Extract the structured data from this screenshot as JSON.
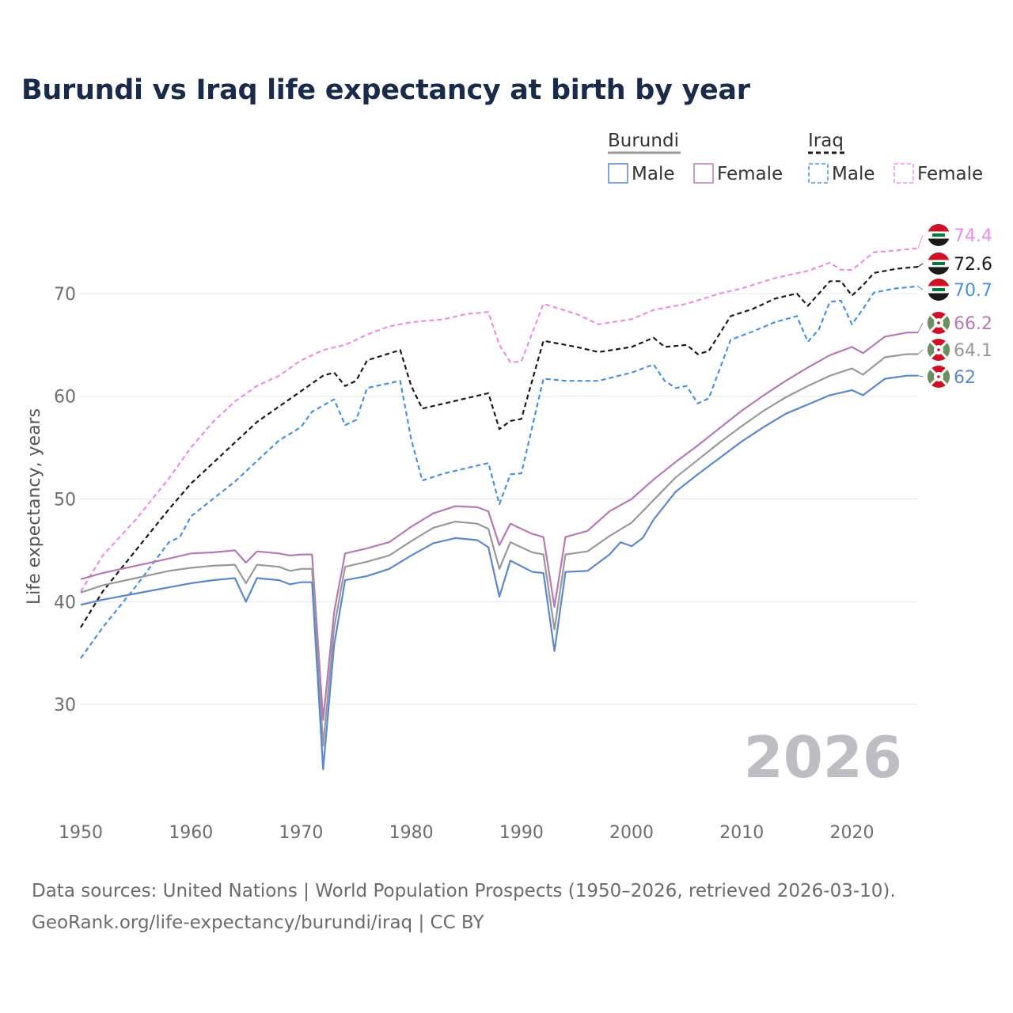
{
  "title": "Burundi vs Iraq life expectancy at birth by year",
  "source": {
    "line1": "Data sources: United Nations | World Population Prospects (1950–2026, retrieved 2026-03-10).",
    "line2": "GeoRank.org/life-expectancy/burundi/iraq | CC BY"
  },
  "year_watermark": "2026",
  "legend": {
    "groups": [
      {
        "country": "Burundi",
        "items": [
          "Male",
          "Female"
        ]
      },
      {
        "country": "Iraq",
        "items": [
          "Male",
          "Female"
        ]
      }
    ]
  },
  "colors": {
    "burundi_total": "#999999",
    "burundi_male": "#5b87cf",
    "burundi_female": "#b57ab5",
    "iraq_total": "#1a1a1a",
    "iraq_male": "#4a90e2",
    "iraq_female": "#f08ce6"
  },
  "chart_data": {
    "type": "line",
    "title": "Burundi vs Iraq life expectancy at birth by year",
    "xlabel": "",
    "ylabel": "Life expectancy, years",
    "xlim": [
      1950,
      2026
    ],
    "ylim": [
      20,
      77
    ],
    "x_ticks": [
      1950,
      1960,
      1970,
      1980,
      1990,
      2000,
      2010,
      2020
    ],
    "y_ticks": [
      30,
      40,
      50,
      60,
      70
    ],
    "grid": "horizontal",
    "legend_position": "top-right",
    "series": [
      {
        "key": "iraq_female",
        "name": "Iraq Female",
        "dashed": true,
        "end_label": "74.4",
        "points": [
          [
            1950,
            41.0
          ],
          [
            1952,
            44.5
          ],
          [
            1955,
            48.0
          ],
          [
            1958,
            52.0
          ],
          [
            1960,
            55.0
          ],
          [
            1962,
            57.5
          ],
          [
            1964,
            59.5
          ],
          [
            1966,
            61.0
          ],
          [
            1968,
            62.0
          ],
          [
            1970,
            63.5
          ],
          [
            1972,
            64.5
          ],
          [
            1974,
            65.0
          ],
          [
            1976,
            66.0
          ],
          [
            1978,
            66.8
          ],
          [
            1980,
            67.2
          ],
          [
            1983,
            67.5
          ],
          [
            1985,
            68.0
          ],
          [
            1987,
            68.2
          ],
          [
            1988,
            65.0
          ],
          [
            1989,
            63.3
          ],
          [
            1990,
            63.4
          ],
          [
            1992,
            69.0
          ],
          [
            1995,
            68.0
          ],
          [
            1997,
            67.0
          ],
          [
            2000,
            67.5
          ],
          [
            2002,
            68.4
          ],
          [
            2005,
            69.0
          ],
          [
            2008,
            70.0
          ],
          [
            2010,
            70.5
          ],
          [
            2013,
            71.5
          ],
          [
            2016,
            72.2
          ],
          [
            2018,
            73.0
          ],
          [
            2019,
            72.3
          ],
          [
            2020,
            72.3
          ],
          [
            2022,
            74.0
          ],
          [
            2024,
            74.2
          ],
          [
            2026,
            74.4
          ]
        ]
      },
      {
        "key": "iraq_total",
        "name": "Iraq",
        "dashed": true,
        "end_label": "72.6",
        "points": [
          [
            1950,
            37.5
          ],
          [
            1952,
            41.0
          ],
          [
            1955,
            45.0
          ],
          [
            1958,
            49.0
          ],
          [
            1960,
            51.5
          ],
          [
            1962,
            53.5
          ],
          [
            1964,
            55.5
          ],
          [
            1966,
            57.5
          ],
          [
            1968,
            59.0
          ],
          [
            1970,
            60.5
          ],
          [
            1972,
            62.0
          ],
          [
            1973,
            62.3
          ],
          [
            1974,
            61.0
          ],
          [
            1975,
            61.5
          ],
          [
            1976,
            63.5
          ],
          [
            1979,
            64.5
          ],
          [
            1980,
            61.0
          ],
          [
            1981,
            58.8
          ],
          [
            1983,
            59.3
          ],
          [
            1985,
            59.8
          ],
          [
            1987,
            60.3
          ],
          [
            1988,
            56.8
          ],
          [
            1989,
            57.6
          ],
          [
            1990,
            57.8
          ],
          [
            1992,
            65.4
          ],
          [
            1995,
            64.8
          ],
          [
            1997,
            64.3
          ],
          [
            2000,
            64.8
          ],
          [
            2002,
            65.7
          ],
          [
            2003,
            64.8
          ],
          [
            2005,
            65.0
          ],
          [
            2006,
            64.1
          ],
          [
            2007,
            64.4
          ],
          [
            2009,
            67.8
          ],
          [
            2011,
            68.5
          ],
          [
            2013,
            69.5
          ],
          [
            2015,
            70.0
          ],
          [
            2016,
            68.8
          ],
          [
            2018,
            71.2
          ],
          [
            2019,
            71.2
          ],
          [
            2020,
            69.8
          ],
          [
            2021,
            70.8
          ],
          [
            2022,
            72.0
          ],
          [
            2024,
            72.4
          ],
          [
            2026,
            72.6
          ]
        ]
      },
      {
        "key": "iraq_male",
        "name": "Iraq Male",
        "dashed": true,
        "end_label": "70.7",
        "points": [
          [
            1950,
            34.5
          ],
          [
            1952,
            37.5
          ],
          [
            1955,
            41.5
          ],
          [
            1958,
            45.8
          ],
          [
            1959,
            46.3
          ],
          [
            1960,
            48.3
          ],
          [
            1962,
            50.0
          ],
          [
            1964,
            51.7
          ],
          [
            1966,
            53.7
          ],
          [
            1968,
            55.7
          ],
          [
            1970,
            57.0
          ],
          [
            1971,
            58.5
          ],
          [
            1973,
            59.7
          ],
          [
            1974,
            57.2
          ],
          [
            1975,
            57.7
          ],
          [
            1976,
            60.8
          ],
          [
            1979,
            61.5
          ],
          [
            1980,
            55.8
          ],
          [
            1981,
            51.8
          ],
          [
            1983,
            52.5
          ],
          [
            1985,
            53.0
          ],
          [
            1987,
            53.5
          ],
          [
            1988,
            49.5
          ],
          [
            1989,
            52.4
          ],
          [
            1990,
            52.5
          ],
          [
            1992,
            61.7
          ],
          [
            1994,
            61.5
          ],
          [
            1997,
            61.5
          ],
          [
            2000,
            62.3
          ],
          [
            2002,
            63.1
          ],
          [
            2003,
            61.5
          ],
          [
            2004,
            60.8
          ],
          [
            2005,
            61.0
          ],
          [
            2006,
            59.3
          ],
          [
            2007,
            59.8
          ],
          [
            2009,
            65.5
          ],
          [
            2011,
            66.3
          ],
          [
            2013,
            67.2
          ],
          [
            2015,
            67.8
          ],
          [
            2016,
            65.3
          ],
          [
            2017,
            66.5
          ],
          [
            2018,
            69.2
          ],
          [
            2019,
            69.3
          ],
          [
            2020,
            67.0
          ],
          [
            2021,
            68.5
          ],
          [
            2022,
            70.1
          ],
          [
            2024,
            70.5
          ],
          [
            2026,
            70.7
          ]
        ]
      },
      {
        "key": "burundi_female",
        "name": "Burundi Female",
        "dashed": false,
        "end_label": "66.2",
        "points": [
          [
            1950,
            42.2
          ],
          [
            1952,
            42.8
          ],
          [
            1955,
            43.5
          ],
          [
            1958,
            44.2
          ],
          [
            1960,
            44.7
          ],
          [
            1962,
            44.8
          ],
          [
            1964,
            45.0
          ],
          [
            1965,
            43.8
          ],
          [
            1966,
            44.9
          ],
          [
            1968,
            44.7
          ],
          [
            1969,
            44.5
          ],
          [
            1970,
            44.6
          ],
          [
            1971,
            44.6
          ],
          [
            1972,
            28.5
          ],
          [
            1973,
            39.0
          ],
          [
            1974,
            44.7
          ],
          [
            1976,
            45.2
          ],
          [
            1978,
            45.8
          ],
          [
            1980,
            47.3
          ],
          [
            1982,
            48.6
          ],
          [
            1984,
            49.3
          ],
          [
            1986,
            49.2
          ],
          [
            1987,
            48.8
          ],
          [
            1988,
            45.5
          ],
          [
            1989,
            47.6
          ],
          [
            1991,
            46.6
          ],
          [
            1992,
            46.3
          ],
          [
            1993,
            39.5
          ],
          [
            1994,
            46.3
          ],
          [
            1996,
            46.9
          ],
          [
            1998,
            48.8
          ],
          [
            2000,
            50.0
          ],
          [
            2002,
            51.9
          ],
          [
            2004,
            53.6
          ],
          [
            2006,
            55.2
          ],
          [
            2008,
            56.9
          ],
          [
            2010,
            58.6
          ],
          [
            2012,
            60.1
          ],
          [
            2014,
            61.5
          ],
          [
            2016,
            62.8
          ],
          [
            2018,
            64.0
          ],
          [
            2020,
            64.8
          ],
          [
            2021,
            64.2
          ],
          [
            2023,
            65.8
          ],
          [
            2025,
            66.2
          ],
          [
            2026,
            66.2
          ]
        ]
      },
      {
        "key": "burundi_total",
        "name": "Burundi",
        "dashed": false,
        "end_label": "64.1",
        "points": [
          [
            1950,
            40.9
          ],
          [
            1952,
            41.6
          ],
          [
            1955,
            42.3
          ],
          [
            1958,
            43.0
          ],
          [
            1960,
            43.3
          ],
          [
            1962,
            43.5
          ],
          [
            1964,
            43.6
          ],
          [
            1965,
            41.8
          ],
          [
            1966,
            43.6
          ],
          [
            1968,
            43.4
          ],
          [
            1969,
            43.0
          ],
          [
            1970,
            43.2
          ],
          [
            1971,
            43.2
          ],
          [
            1972,
            26.0
          ],
          [
            1973,
            37.5
          ],
          [
            1974,
            43.4
          ],
          [
            1976,
            43.9
          ],
          [
            1978,
            44.5
          ],
          [
            1980,
            45.9
          ],
          [
            1982,
            47.2
          ],
          [
            1984,
            47.8
          ],
          [
            1986,
            47.6
          ],
          [
            1987,
            47.1
          ],
          [
            1988,
            43.2
          ],
          [
            1989,
            45.8
          ],
          [
            1991,
            44.8
          ],
          [
            1992,
            44.6
          ],
          [
            1993,
            37.3
          ],
          [
            1994,
            44.6
          ],
          [
            1996,
            44.9
          ],
          [
            1998,
            46.4
          ],
          [
            2000,
            47.7
          ],
          [
            2002,
            49.9
          ],
          [
            2004,
            52.1
          ],
          [
            2006,
            53.8
          ],
          [
            2008,
            55.5
          ],
          [
            2010,
            57.1
          ],
          [
            2012,
            58.6
          ],
          [
            2014,
            59.9
          ],
          [
            2016,
            61.0
          ],
          [
            2018,
            62.0
          ],
          [
            2020,
            62.7
          ],
          [
            2021,
            62.1
          ],
          [
            2023,
            63.8
          ],
          [
            2025,
            64.1
          ],
          [
            2026,
            64.1
          ]
        ]
      },
      {
        "key": "burundi_male",
        "name": "Burundi Male",
        "dashed": false,
        "end_label": "62",
        "points": [
          [
            1950,
            39.7
          ],
          [
            1952,
            40.2
          ],
          [
            1955,
            40.8
          ],
          [
            1958,
            41.4
          ],
          [
            1960,
            41.8
          ],
          [
            1962,
            42.1
          ],
          [
            1964,
            42.3
          ],
          [
            1965,
            40.0
          ],
          [
            1966,
            42.3
          ],
          [
            1968,
            42.1
          ],
          [
            1969,
            41.7
          ],
          [
            1970,
            41.9
          ],
          [
            1971,
            41.9
          ],
          [
            1972,
            23.7
          ],
          [
            1973,
            35.8
          ],
          [
            1974,
            42.1
          ],
          [
            1976,
            42.5
          ],
          [
            1978,
            43.2
          ],
          [
            1980,
            44.5
          ],
          [
            1982,
            45.7
          ],
          [
            1984,
            46.2
          ],
          [
            1986,
            46.0
          ],
          [
            1987,
            45.3
          ],
          [
            1988,
            40.5
          ],
          [
            1989,
            44.0
          ],
          [
            1991,
            42.9
          ],
          [
            1992,
            42.8
          ],
          [
            1993,
            35.2
          ],
          [
            1994,
            42.9
          ],
          [
            1996,
            43.0
          ],
          [
            1998,
            44.6
          ],
          [
            1999,
            45.8
          ],
          [
            2000,
            45.4
          ],
          [
            2001,
            46.2
          ],
          [
            2002,
            48.0
          ],
          [
            2004,
            50.7
          ],
          [
            2006,
            52.4
          ],
          [
            2008,
            54.0
          ],
          [
            2010,
            55.6
          ],
          [
            2012,
            57.0
          ],
          [
            2014,
            58.3
          ],
          [
            2016,
            59.2
          ],
          [
            2018,
            60.1
          ],
          [
            2020,
            60.6
          ],
          [
            2021,
            60.1
          ],
          [
            2023,
            61.7
          ],
          [
            2025,
            62.0
          ],
          [
            2026,
            62.0
          ]
        ]
      }
    ]
  }
}
